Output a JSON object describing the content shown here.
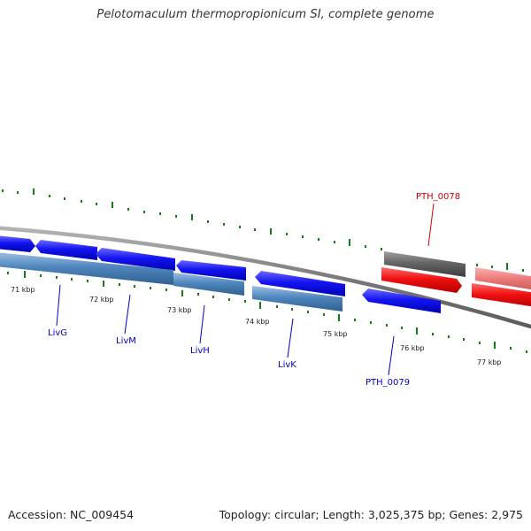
{
  "title": "Pelotomaculum thermopropionicum SI, complete genome",
  "footer": {
    "accession": "Accession: NC_009454",
    "summary": "Topology: circular; Length: 3,025,375 bp; Genes: 2,975"
  },
  "colors": {
    "tick": "#1a7a1a",
    "backbone": "#808080",
    "gene_blue": "#1010f0",
    "gene_steel": "#4f86bd",
    "gene_gray": "#666666",
    "gene_red": "#f01010",
    "gene_pink": "#ee7d7d",
    "label_blue": "#0000cc",
    "label_red": "#cc0000"
  },
  "scale_labels": [
    {
      "text": "71 kbp"
    },
    {
      "text": "72 kbp"
    },
    {
      "text": "73 kbp"
    },
    {
      "text": "74 kbp"
    },
    {
      "text": "75 kbp"
    },
    {
      "text": "76 kbp"
    },
    {
      "text": "77 kbp"
    }
  ],
  "gene_labels": [
    {
      "text": "LivG",
      "color": "#0000cc"
    },
    {
      "text": "LivM",
      "color": "#0000cc"
    },
    {
      "text": "LivH",
      "color": "#0000cc"
    },
    {
      "text": "LivK",
      "color": "#0000cc"
    },
    {
      "text": "PTH_0079",
      "color": "#0000cc"
    },
    {
      "text": "PTH_0078",
      "color": "#cc0000"
    }
  ]
}
